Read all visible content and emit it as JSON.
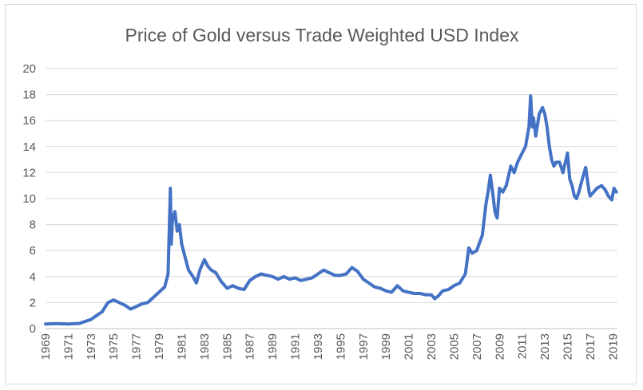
{
  "chart_data": {
    "type": "line",
    "title": "Price of Gold versus Trade Weighted USD Index",
    "xlabel": "",
    "ylabel": "",
    "ylim": [
      0,
      20
    ],
    "xlim": [
      1969,
      2019.4
    ],
    "y_ticks": [
      "0",
      "2",
      "4",
      "6",
      "8",
      "10",
      "12",
      "14",
      "16",
      "18",
      "20"
    ],
    "x_ticks": [
      "1969",
      "1971",
      "1973",
      "1975",
      "1977",
      "1979",
      "1981",
      "1983",
      "1985",
      "1987",
      "1989",
      "1991",
      "1993",
      "1995",
      "1997",
      "1999",
      "2001",
      "2003",
      "2005",
      "2007",
      "2009",
      "2011",
      "2013",
      "2015",
      "2017",
      "2019"
    ],
    "grid": true,
    "legend": "none",
    "line_color": "#4472c4",
    "series": [
      {
        "x": [
          1969.0,
          1970.0,
          1971.0,
          1972.0,
          1972.5,
          1973.0,
          1973.5,
          1974.0,
          1974.5,
          1975.0,
          1975.5,
          1976.0,
          1976.5,
          1977.0,
          1977.5,
          1978.0,
          1978.5,
          1979.0,
          1979.5,
          1979.8,
          1980.0,
          1980.08,
          1980.2,
          1980.4,
          1980.6,
          1980.8,
          1981.0,
          1981.3,
          1981.6,
          1982.0,
          1982.3,
          1982.6,
          1983.0,
          1983.3,
          1983.6,
          1984.0,
          1984.5,
          1985.0,
          1985.5,
          1986.0,
          1986.5,
          1987.0,
          1987.5,
          1988.0,
          1988.5,
          1989.0,
          1989.5,
          1990.0,
          1990.5,
          1991.0,
          1991.5,
          1992.0,
          1992.5,
          1993.0,
          1993.5,
          1994.0,
          1994.5,
          1995.0,
          1995.5,
          1996.0,
          1996.5,
          1997.0,
          1997.5,
          1998.0,
          1998.5,
          1999.0,
          1999.5,
          2000.0,
          2000.5,
          2001.0,
          2001.5,
          2002.0,
          2002.5,
          2003.0,
          2003.3,
          2003.6,
          2004.0,
          2004.5,
          2005.0,
          2005.5,
          2006.0,
          2006.3,
          2006.6,
          2007.0,
          2007.5,
          2007.8,
          2008.0,
          2008.2,
          2008.4,
          2008.6,
          2008.8,
          2009.0,
          2009.3,
          2009.6,
          2010.0,
          2010.3,
          2010.6,
          2011.0,
          2011.3,
          2011.6,
          2011.75,
          2011.9,
          2012.0,
          2012.2,
          2012.5,
          2012.8,
          2013.0,
          2013.2,
          2013.4,
          2013.6,
          2013.8,
          2014.0,
          2014.3,
          2014.6,
          2015.0,
          2015.2,
          2015.4,
          2015.6,
          2015.8,
          2016.0,
          2016.3,
          2016.6,
          2016.9,
          2017.0,
          2017.3,
          2017.6,
          2018.0,
          2018.3,
          2018.6,
          2018.9,
          2019.1,
          2019.3
        ],
        "y": [
          0.35,
          0.38,
          0.35,
          0.4,
          0.55,
          0.7,
          1.0,
          1.3,
          2.0,
          2.2,
          2.0,
          1.8,
          1.5,
          1.7,
          1.9,
          2.0,
          2.4,
          2.8,
          3.2,
          4.2,
          10.8,
          6.5,
          8.5,
          9.0,
          7.5,
          8.0,
          6.5,
          5.5,
          4.5,
          4.0,
          3.5,
          4.5,
          5.3,
          4.8,
          4.5,
          4.3,
          3.6,
          3.1,
          3.3,
          3.1,
          3.0,
          3.7,
          4.0,
          4.2,
          4.1,
          4.0,
          3.8,
          4.0,
          3.8,
          3.9,
          3.7,
          3.8,
          3.9,
          4.2,
          4.5,
          4.3,
          4.1,
          4.1,
          4.2,
          4.7,
          4.4,
          3.8,
          3.5,
          3.2,
          3.1,
          2.9,
          2.8,
          3.3,
          2.9,
          2.8,
          2.7,
          2.7,
          2.6,
          2.6,
          2.3,
          2.5,
          2.9,
          3.0,
          3.3,
          3.5,
          4.2,
          6.2,
          5.8,
          6.0,
          7.2,
          9.5,
          10.5,
          11.8,
          10.5,
          9.0,
          8.5,
          10.8,
          10.5,
          11.0,
          12.5,
          12.0,
          12.8,
          13.5,
          14.0,
          15.5,
          17.9,
          15.5,
          16.2,
          14.8,
          16.5,
          17.0,
          16.5,
          15.5,
          14.0,
          13.0,
          12.5,
          12.8,
          12.8,
          12.0,
          13.5,
          11.5,
          11.0,
          10.2,
          10.0,
          10.5,
          11.5,
          12.4,
          10.5,
          10.2,
          10.5,
          10.8,
          11.0,
          10.7,
          10.2,
          9.9,
          10.8,
          10.5
        ]
      }
    ]
  }
}
